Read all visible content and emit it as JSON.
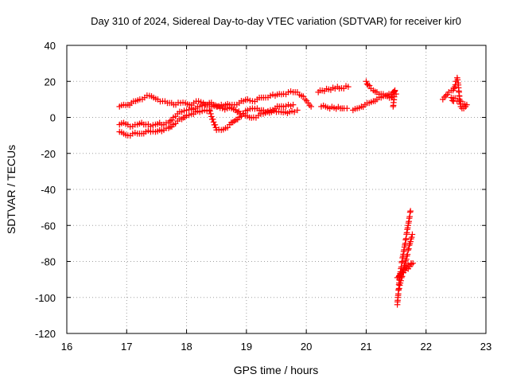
{
  "chart_data": {
    "type": "scatter",
    "title": "Day 310 of 2024, Sidereal Day-to-day VTEC variation (SDTVAR) for receiver kir0",
    "xlabel": "GPS time / hours",
    "ylabel": "SDTVAR / TECUs",
    "xlim": [
      16,
      23
    ],
    "ylim": [
      -120,
      40
    ],
    "xticks": [
      16,
      17,
      18,
      19,
      20,
      21,
      22,
      23
    ],
    "yticks": [
      40,
      20,
      0,
      -20,
      -40,
      -60,
      -80,
      -100,
      -120
    ],
    "grid": true,
    "marker": "plus",
    "color": "#ff0000",
    "series": [
      {
        "name": "upper track",
        "points": [
          [
            16.88,
            6
          ],
          [
            16.95,
            7
          ],
          [
            17.02,
            7
          ],
          [
            17.08,
            8
          ],
          [
            17.15,
            9
          ],
          [
            17.22,
            10
          ],
          [
            17.3,
            11
          ],
          [
            17.38,
            12
          ],
          [
            17.45,
            11
          ],
          [
            17.52,
            10
          ],
          [
            17.6,
            9
          ],
          [
            17.68,
            8
          ],
          [
            17.75,
            8
          ],
          [
            17.82,
            7
          ],
          [
            17.9,
            8
          ],
          [
            17.98,
            8
          ],
          [
            18.05,
            7
          ],
          [
            18.12,
            8
          ],
          [
            18.2,
            9
          ],
          [
            18.28,
            8
          ],
          [
            18.35,
            7
          ],
          [
            18.42,
            6
          ],
          [
            18.5,
            6
          ],
          [
            18.58,
            7
          ],
          [
            18.65,
            7
          ],
          [
            18.72,
            7
          ],
          [
            18.8,
            7
          ],
          [
            18.88,
            8
          ],
          [
            18.95,
            9
          ],
          [
            19.02,
            10
          ],
          [
            19.1,
            9
          ],
          [
            19.18,
            10
          ],
          [
            19.25,
            11
          ],
          [
            19.32,
            11
          ],
          [
            19.4,
            12
          ],
          [
            19.48,
            12
          ],
          [
            19.55,
            13
          ],
          [
            19.62,
            13
          ],
          [
            19.7,
            14
          ],
          [
            19.78,
            14
          ],
          [
            19.85,
            14
          ],
          [
            19.92,
            12
          ],
          [
            19.98,
            10
          ],
          [
            20.03,
            8
          ],
          [
            20.08,
            6
          ]
        ]
      },
      {
        "name": "middle track",
        "points": [
          [
            16.88,
            -4
          ],
          [
            16.95,
            -3
          ],
          [
            17.02,
            -4
          ],
          [
            17.1,
            -5
          ],
          [
            17.18,
            -4
          ],
          [
            17.25,
            -3
          ],
          [
            17.32,
            -4
          ],
          [
            17.4,
            -5
          ],
          [
            17.48,
            -4
          ],
          [
            17.55,
            -3
          ],
          [
            17.62,
            -4
          ],
          [
            17.7,
            -3
          ],
          [
            17.78,
            0
          ],
          [
            17.85,
            2
          ],
          [
            17.92,
            3
          ],
          [
            18.0,
            4
          ],
          [
            18.08,
            5
          ],
          [
            18.15,
            5
          ],
          [
            18.22,
            6
          ],
          [
            18.3,
            7
          ],
          [
            18.38,
            8
          ],
          [
            18.45,
            7
          ],
          [
            18.52,
            6
          ],
          [
            18.6,
            5
          ],
          [
            18.68,
            5
          ],
          [
            18.75,
            5
          ],
          [
            18.82,
            4
          ],
          [
            18.9,
            2
          ],
          [
            18.98,
            1
          ],
          [
            19.05,
            0
          ],
          [
            19.12,
            0
          ],
          [
            19.2,
            1
          ],
          [
            19.28,
            2
          ],
          [
            19.35,
            3
          ],
          [
            19.42,
            3
          ],
          [
            19.5,
            3
          ],
          [
            19.58,
            3
          ],
          [
            19.65,
            3
          ],
          [
            19.72,
            3
          ],
          [
            19.8,
            3
          ],
          [
            19.85,
            4
          ]
        ]
      },
      {
        "name": "lower track",
        "points": [
          [
            16.88,
            -8
          ],
          [
            16.95,
            -9
          ],
          [
            17.02,
            -10
          ],
          [
            17.1,
            -9
          ],
          [
            17.18,
            -9
          ],
          [
            17.25,
            -9
          ],
          [
            17.32,
            -8
          ],
          [
            17.4,
            -8
          ],
          [
            17.48,
            -8
          ],
          [
            17.55,
            -7
          ],
          [
            17.62,
            -7
          ],
          [
            17.7,
            -6
          ],
          [
            17.78,
            -4
          ],
          [
            17.85,
            -2
          ],
          [
            17.92,
            -1
          ],
          [
            18.0,
            1
          ],
          [
            18.08,
            2
          ],
          [
            18.15,
            3
          ],
          [
            18.22,
            3
          ],
          [
            18.3,
            4
          ],
          [
            18.38,
            4
          ],
          [
            18.5,
            -7
          ],
          [
            18.58,
            -7
          ],
          [
            18.65,
            -6
          ],
          [
            18.72,
            -4
          ],
          [
            18.8,
            -2
          ],
          [
            18.88,
            0
          ],
          [
            18.95,
            2
          ],
          [
            19.02,
            4
          ],
          [
            19.1,
            5
          ],
          [
            19.18,
            5
          ],
          [
            19.25,
            4
          ],
          [
            19.32,
            3
          ],
          [
            19.4,
            4
          ],
          [
            19.48,
            5
          ],
          [
            19.55,
            6
          ],
          [
            19.62,
            6
          ],
          [
            19.7,
            7
          ],
          [
            19.78,
            7
          ]
        ]
      },
      {
        "name": "isolated points",
        "points": [
          [
            20.2,
            14
          ],
          [
            20.23,
            15
          ],
          [
            20.48,
            16
          ],
          [
            20.52,
            17
          ],
          [
            20.55,
            16
          ],
          [
            20.7,
            17
          ],
          [
            20.25,
            6
          ],
          [
            20.57,
            5
          ],
          [
            20.6,
            5
          ],
          [
            20.63,
            5
          ],
          [
            20.68,
            5
          ]
        ]
      },
      {
        "name": "track 21h",
        "points": [
          [
            20.78,
            4
          ],
          [
            20.85,
            5
          ],
          [
            20.92,
            6
          ],
          [
            20.98,
            7
          ],
          [
            21.05,
            8
          ],
          [
            21.12,
            9
          ],
          [
            21.18,
            10
          ],
          [
            21.25,
            11
          ],
          [
            21.32,
            12
          ],
          [
            21.38,
            13
          ],
          [
            21.45,
            14
          ],
          [
            21.5,
            13
          ],
          [
            21.0,
            20
          ],
          [
            21.03,
            18
          ],
          [
            21.08,
            16
          ],
          [
            21.12,
            15
          ],
          [
            21.18,
            14
          ],
          [
            21.25,
            13
          ],
          [
            21.32,
            12
          ],
          [
            21.42,
            11
          ],
          [
            21.48,
            15
          ],
          [
            21.45,
            6
          ]
        ]
      },
      {
        "name": "track 22h",
        "points": [
          [
            22.28,
            10
          ],
          [
            22.33,
            12
          ],
          [
            22.38,
            14
          ],
          [
            22.42,
            15
          ],
          [
            22.45,
            15
          ],
          [
            22.48,
            17
          ],
          [
            22.5,
            20
          ],
          [
            22.52,
            22
          ],
          [
            22.54,
            18
          ],
          [
            22.55,
            14
          ],
          [
            22.56,
            10
          ],
          [
            22.58,
            6
          ],
          [
            22.6,
            5
          ],
          [
            22.63,
            5
          ],
          [
            22.66,
            6
          ],
          [
            22.68,
            7
          ],
          [
            22.42,
            11
          ],
          [
            22.46,
            9
          ]
        ]
      },
      {
        "name": "steep track A",
        "points": [
          [
            21.52,
            -104
          ],
          [
            21.53,
            -100
          ],
          [
            21.54,
            -96
          ],
          [
            21.55,
            -92
          ],
          [
            21.56,
            -88
          ],
          [
            21.58,
            -84
          ],
          [
            21.6,
            -80
          ],
          [
            21.62,
            -76
          ],
          [
            21.64,
            -72
          ],
          [
            21.66,
            -68
          ],
          [
            21.68,
            -64
          ],
          [
            21.7,
            -60
          ],
          [
            21.72,
            -56
          ],
          [
            21.74,
            -52
          ]
        ]
      },
      {
        "name": "steep track B",
        "points": [
          [
            21.55,
            -95
          ],
          [
            21.57,
            -92
          ],
          [
            21.59,
            -89
          ],
          [
            21.62,
            -85
          ],
          [
            21.65,
            -81
          ],
          [
            21.68,
            -77
          ],
          [
            21.71,
            -73
          ],
          [
            21.74,
            -69
          ],
          [
            21.77,
            -65
          ],
          [
            21.55,
            -88
          ],
          [
            21.6,
            -86
          ],
          [
            21.65,
            -84
          ],
          [
            21.7,
            -82
          ],
          [
            21.75,
            -81
          ],
          [
            21.78,
            -81
          ],
          [
            21.52,
            -89
          ]
        ]
      }
    ]
  }
}
